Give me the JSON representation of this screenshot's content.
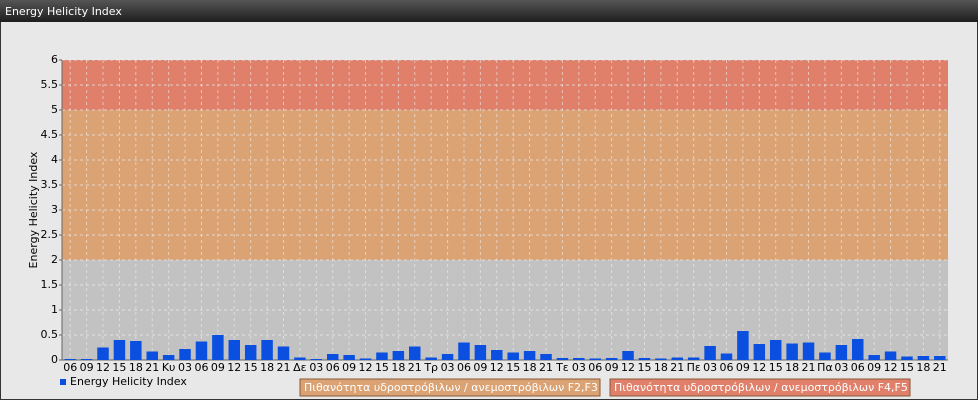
{
  "chart_data": {
    "type": "bar",
    "title": "Energy Helicity Index",
    "y_label": "Energy Helicity Index",
    "categories": [
      "06",
      "09",
      "12",
      "15",
      "18",
      "21",
      "Κυ",
      "03",
      "06",
      "09",
      "12",
      "15",
      "18",
      "21",
      "Δε",
      "03",
      "06",
      "09",
      "12",
      "15",
      "18",
      "21",
      "Τρ",
      "03",
      "06",
      "09",
      "12",
      "15",
      "18",
      "21",
      "Τε",
      "03",
      "06",
      "09",
      "12",
      "15",
      "18",
      "21",
      "Πε",
      "03",
      "06",
      "09",
      "12",
      "15",
      "18",
      "21",
      "Πα",
      "03",
      "06",
      "09",
      "12",
      "15",
      "18",
      "21"
    ],
    "series": [
      {
        "name": "Energy Helicity Index",
        "color": "#0a4fe0",
        "values": [
          0.02,
          0.02,
          0.25,
          0.4,
          0.38,
          0.17,
          0.1,
          0.22,
          0.37,
          0.5,
          0.4,
          0.3,
          0.4,
          0.27,
          0.05,
          0.02,
          0.12,
          0.1,
          0.03,
          0.15,
          0.18,
          0.27,
          0.05,
          0.12,
          0.35,
          0.3,
          0.2,
          0.15,
          0.18,
          0.12,
          0.04,
          0.04,
          0.03,
          0.04,
          0.18,
          0.04,
          0.03,
          0.05,
          0.05,
          0.28,
          0.13,
          0.58,
          0.32,
          0.4,
          0.33,
          0.35,
          0.15,
          0.3,
          0.42,
          0.1,
          0.17,
          0.07,
          0.08,
          0.08
        ]
      }
    ],
    "ylim": [
      0,
      6
    ],
    "yticks": [
      0,
      0.5,
      1,
      1.5,
      2,
      2.5,
      3,
      3.5,
      4,
      4.5,
      5,
      5.5,
      6
    ],
    "grid": true,
    "bands": [
      {
        "from": 0,
        "to": 2,
        "color": "#c2c2c2"
      },
      {
        "from": 2,
        "to": 5,
        "color": "#dba273",
        "label": "Πιθανότητα υδροστρόβιλων / ανεμοστρόβιλων F2,F3"
      },
      {
        "from": 5,
        "to": 6,
        "color": "#e0806a",
        "label": "Πιθανότητα υδροστρόβιλων / ανεμοστρόβιλων F4,F5"
      }
    ]
  }
}
